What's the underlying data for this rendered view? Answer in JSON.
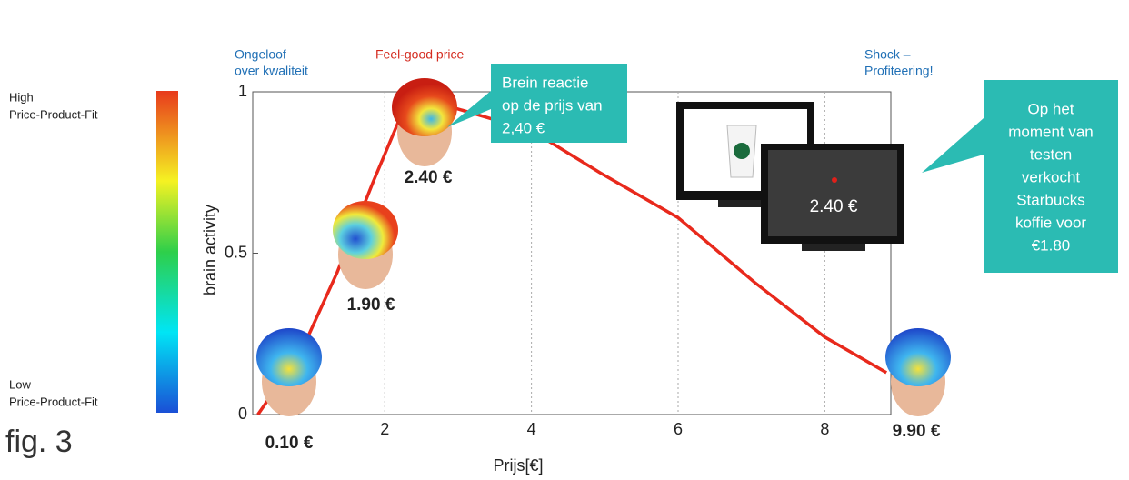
{
  "chart_data": {
    "type": "line",
    "x_label": "Prijs[€]",
    "y_label": "brain activity",
    "x": [
      0.27,
      0.85,
      1.35,
      1.84,
      2.21,
      2.58,
      2.95,
      4,
      4.93,
      6,
      7.04,
      8,
      8.84
    ],
    "series": [
      {
        "name": "brain activity",
        "color": "#e8291c",
        "values": [
          0,
          0.19,
          0.44,
          0.72,
          0.92,
          0.99,
          0.95,
          0.88,
          0.75,
          0.61,
          0.41,
          0.24,
          0.13
        ]
      }
    ],
    "xlim": [
      0.2,
      8.9
    ],
    "ylim": [
      0,
      1
    ],
    "xticks": [
      2,
      4,
      6,
      8
    ],
    "yticks": [
      0,
      0.5,
      1
    ],
    "grid": true,
    "label_left": [
      "Ongeloof",
      "over kwaliteit"
    ],
    "label_middle": "Feel-good price",
    "label_right": [
      "Shock –",
      "Profiteering!"
    ],
    "price_labels": [
      "0.10 €",
      "1.90 €",
      "2.40 €",
      "9.90 €"
    ],
    "callout_left": [
      "Brein reactie",
      "op de prijs van",
      "2,40 €"
    ],
    "callout_right": [
      "Op het",
      "moment van",
      "testen",
      "verkocht",
      "Starbucks",
      "koffie voor",
      "€1.80"
    ],
    "screen_price": "2.40 €",
    "colorbar_high": [
      "High",
      "Price-Product-Fit"
    ],
    "colorbar_low": [
      "Low",
      "Price-Product-Fit"
    ],
    "figure_label": "fig. 3"
  }
}
